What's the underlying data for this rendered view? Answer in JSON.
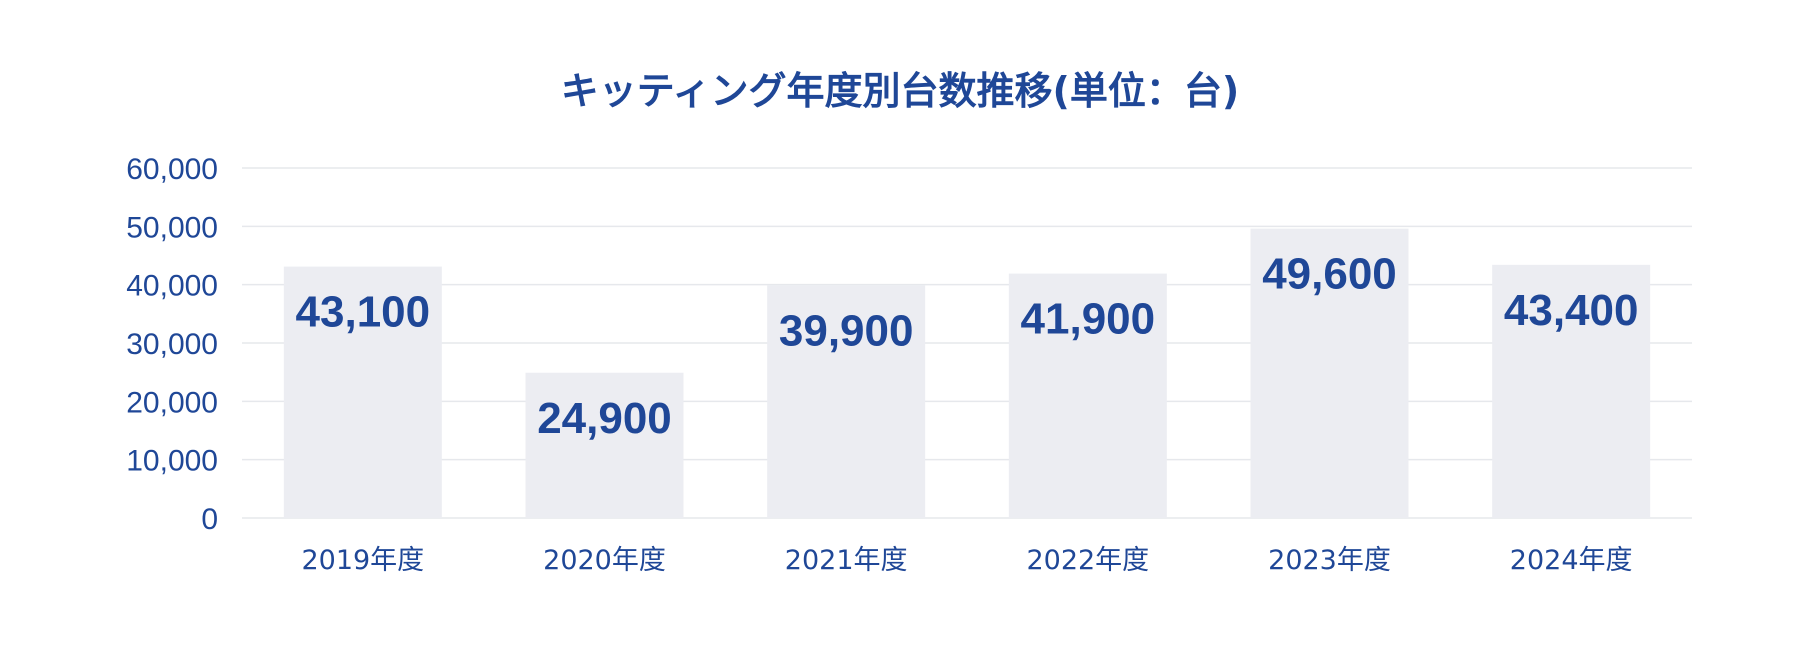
{
  "chart_data": {
    "type": "bar",
    "title": "キッティング年度別台数推移(単位：台)",
    "xlabel": "",
    "ylabel": "",
    "categories": [
      "2019年度",
      "2020年度",
      "2021年度",
      "2022年度",
      "2023年度",
      "2024年度"
    ],
    "values": [
      43100,
      24900,
      39900,
      41900,
      49600,
      43400
    ],
    "value_labels": [
      "43,100",
      "24,900",
      "39,900",
      "41,900",
      "49,600",
      "43,400"
    ],
    "ylim": [
      0,
      60000
    ],
    "yticks": [
      0,
      10000,
      20000,
      30000,
      40000,
      50000,
      60000
    ],
    "ytick_labels": [
      "0",
      "10,000",
      "20,000",
      "30,000",
      "40,000",
      "50,000",
      "60,000"
    ],
    "grid": true,
    "legend": "none",
    "colors": {
      "text": "#1f4797",
      "bar": "#ecedf2",
      "grid": "#e6e8ec"
    }
  }
}
